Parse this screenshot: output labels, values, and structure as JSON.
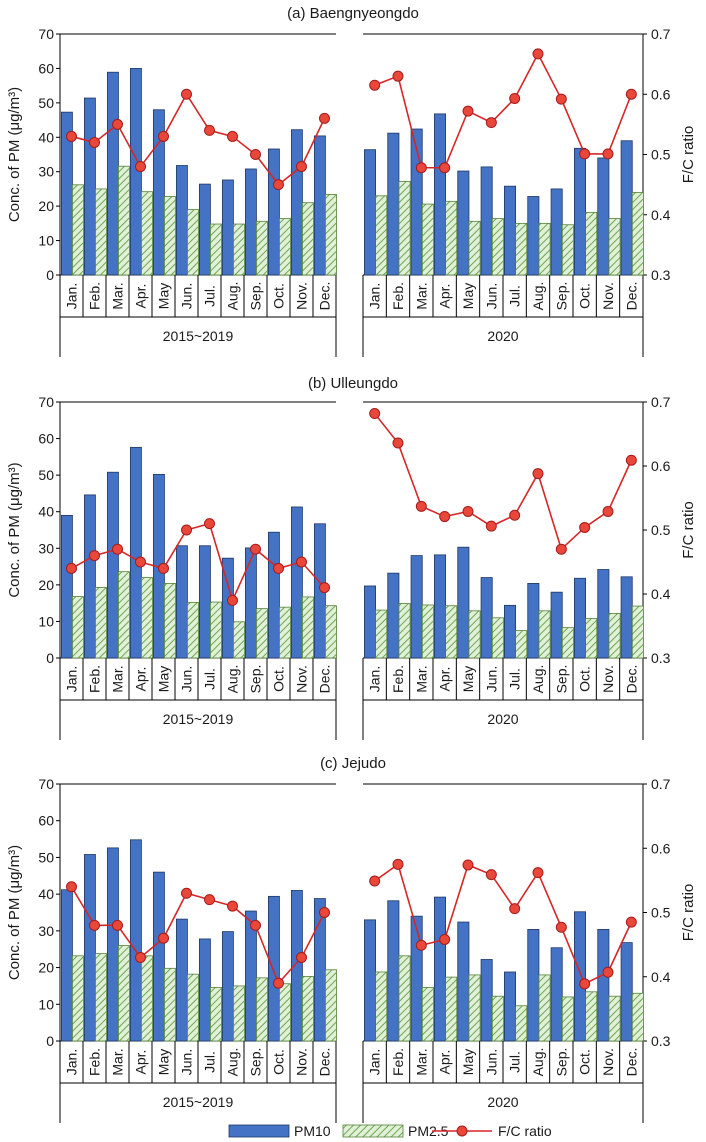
{
  "chart_data": [
    {
      "type": "bar",
      "title": "(a) Baengnyeongdo",
      "ylabel": "Conc. of PM (μg/m³)",
      "y2label": "F/C ratio",
      "ylim": [
        0,
        70
      ],
      "y2lim": [
        0.3,
        0.7
      ],
      "yticks": [
        "0",
        "10",
        "20",
        "30",
        "40",
        "50",
        "60",
        "70"
      ],
      "y2ticks": [
        "0.3",
        "0.4",
        "0.5",
        "0.6",
        "0.7"
      ],
      "categories": [
        "Jan.",
        "Feb.",
        "Mar.",
        "Apr.",
        "May",
        "Jun.",
        "Jul.",
        "Aug.",
        "Sep.",
        "Oct.",
        "Nov.",
        "Dec."
      ],
      "groups": [
        {
          "label": "2015~2019",
          "pm10": [
            47.3,
            51.4,
            58.9,
            60.0,
            48.0,
            31.8,
            26.4,
            27.6,
            30.8,
            36.6,
            42.2,
            40.4
          ],
          "pm25": [
            26.2,
            25.0,
            31.6,
            24.2,
            22.8,
            19.0,
            14.8,
            14.8,
            15.6,
            16.4,
            21.0,
            23.4
          ],
          "fc": [
            0.53,
            0.52,
            0.55,
            0.48,
            0.53,
            0.6,
            0.54,
            0.53,
            0.5,
            0.45,
            0.48,
            0.56
          ]
        },
        {
          "label": "2020",
          "pm10": [
            36.4,
            41.2,
            42.4,
            46.8,
            30.2,
            31.4,
            25.8,
            22.8,
            25.0,
            36.8,
            34.0,
            39.0
          ],
          "pm25": [
            23.0,
            27.2,
            20.6,
            21.4,
            15.6,
            16.4,
            15.0,
            15.0,
            14.6,
            18.2,
            16.4,
            24.0
          ],
          "fc": [
            0.615,
            0.63,
            0.478,
            0.478,
            0.572,
            0.553,
            0.593,
            0.667,
            0.592,
            0.501,
            0.501,
            0.6
          ]
        }
      ]
    },
    {
      "type": "bar",
      "title": "(b) Ulleungdo",
      "ylabel": "Conc. of PM (μg/m³)",
      "y2label": "F/C ratio",
      "ylim": [
        0,
        70
      ],
      "y2lim": [
        0.3,
        0.7
      ],
      "yticks": [
        "0",
        "10",
        "20",
        "30",
        "40",
        "50",
        "60",
        "70"
      ],
      "y2ticks": [
        "0.3",
        "0.4",
        "0.5",
        "0.6",
        "0.7"
      ],
      "categories": [
        "Jan.",
        "Feb.",
        "Mar.",
        "Apr.",
        "May",
        "Jun.",
        "Jul.",
        "Aug.",
        "Sep.",
        "Oct.",
        "Nov.",
        "Dec."
      ],
      "groups": [
        {
          "label": "2015~2019",
          "pm10": [
            39.0,
            44.6,
            50.8,
            57.6,
            50.2,
            30.7,
            30.7,
            27.3,
            30.1,
            34.4,
            41.3,
            36.7
          ],
          "pm25": [
            16.8,
            19.3,
            23.6,
            22.0,
            20.4,
            15.2,
            15.3,
            9.9,
            13.5,
            13.9,
            16.7,
            14.3
          ],
          "fc": [
            0.44,
            0.46,
            0.47,
            0.45,
            0.44,
            0.5,
            0.51,
            0.39,
            0.47,
            0.44,
            0.45,
            0.41
          ]
        },
        {
          "label": "2020",
          "pm10": [
            19.7,
            23.2,
            28.0,
            28.2,
            30.3,
            22.0,
            14.4,
            20.4,
            18.0,
            21.8,
            24.2,
            22.2
          ],
          "pm25": [
            13.1,
            14.9,
            14.5,
            14.3,
            12.9,
            11.0,
            7.5,
            12.9,
            8.3,
            10.8,
            12.2,
            14.2
          ],
          "fc": [
            0.682,
            0.636,
            0.537,
            0.521,
            0.529,
            0.506,
            0.523,
            0.588,
            0.47,
            0.504,
            0.529,
            0.609
          ]
        }
      ]
    },
    {
      "type": "bar",
      "title": "(c) Jejudo",
      "ylabel": "Conc. of PM (μg/m³)",
      "y2label": "F/C ratio",
      "ylim": [
        0,
        70
      ],
      "y2lim": [
        0.3,
        0.7
      ],
      "yticks": [
        "0",
        "10",
        "20",
        "30",
        "40",
        "50",
        "60",
        "70"
      ],
      "y2ticks": [
        "0.3",
        "0.4",
        "0.5",
        "0.6",
        "0.7"
      ],
      "categories": [
        "Jan.",
        "Feb.",
        "Mar.",
        "Apr.",
        "May",
        "Jun.",
        "Jul.",
        "Aug.",
        "Sep.",
        "Oct.",
        "Nov.",
        "Dec."
      ],
      "groups": [
        {
          "label": "2015~2019",
          "pm10": [
            41.2,
            50.8,
            52.6,
            54.8,
            46.0,
            33.2,
            27.8,
            29.8,
            35.4,
            39.4,
            41.0,
            38.8
          ],
          "pm25": [
            23.2,
            23.8,
            26.0,
            23.2,
            19.8,
            18.2,
            14.6,
            15.0,
            17.2,
            15.6,
            17.6,
            19.4
          ],
          "fc": [
            0.54,
            0.48,
            0.48,
            0.43,
            0.46,
            0.53,
            0.52,
            0.51,
            0.48,
            0.39,
            0.43,
            0.5
          ]
        },
        {
          "label": "2020",
          "pm10": [
            33.0,
            38.2,
            34.0,
            39.2,
            32.4,
            22.2,
            18.8,
            30.4,
            25.4,
            35.2,
            30.4,
            26.8
          ],
          "pm25": [
            18.8,
            23.2,
            14.6,
            17.4,
            18.0,
            12.2,
            9.6,
            18.0,
            12.0,
            13.4,
            12.2,
            13.0
          ],
          "fc": [
            0.549,
            0.575,
            0.449,
            0.458,
            0.574,
            0.559,
            0.506,
            0.562,
            0.477,
            0.389,
            0.407,
            0.485
          ]
        }
      ]
    }
  ],
  "legend": {
    "pm10": "PM10",
    "pm25": "PM2.5",
    "fc": "F/C ratio"
  },
  "colors": {
    "pm10": "#4472C4",
    "pm10_stroke": "#203864",
    "pm25_fill": "#e2f0d9",
    "pm25_hatch": "#70ad47",
    "line": "#d62728",
    "marker": "#e8473a"
  }
}
